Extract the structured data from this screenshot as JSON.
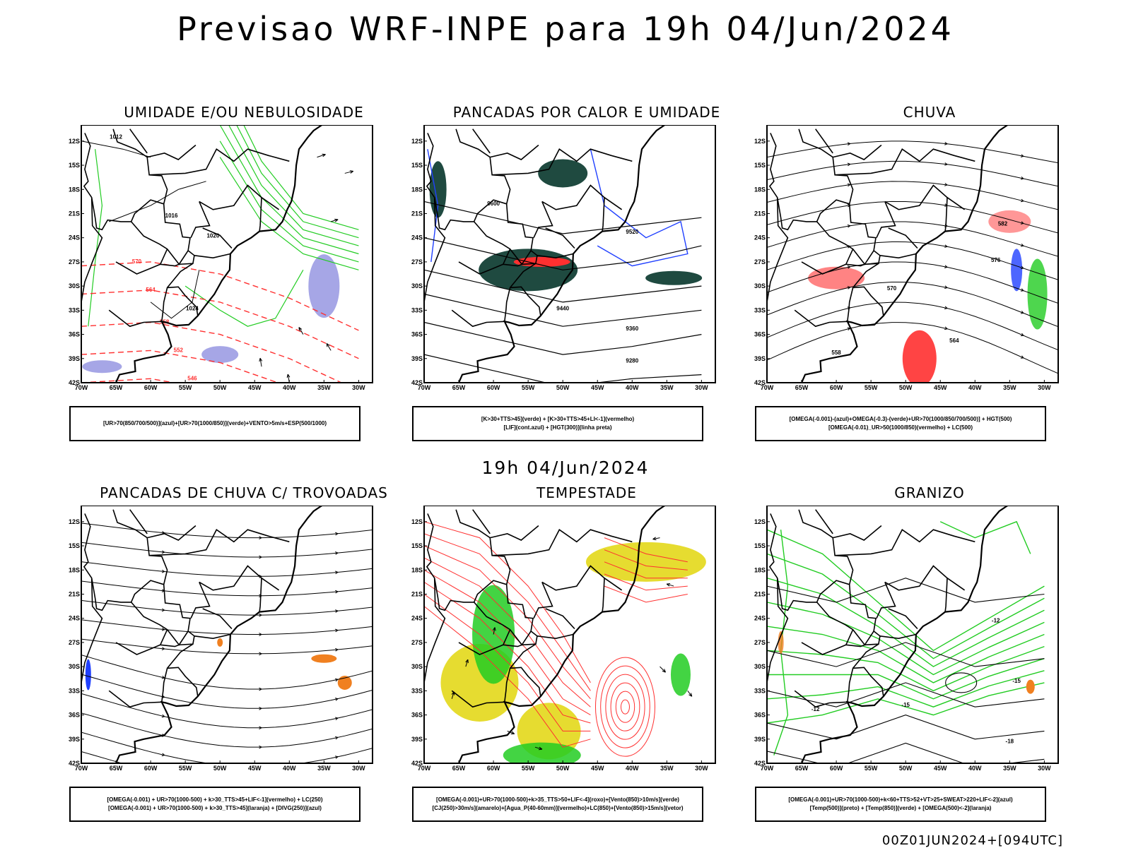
{
  "header": {
    "title": "Previsao WRF-INPE  para 19h 04/Jun/2024"
  },
  "subheader": {
    "title": "19h 04/Jun/2024"
  },
  "footer": {
    "run": "00Z01JUN2024+[094UTC]"
  },
  "axes": {
    "lat_labels": [
      "12S",
      "15S",
      "18S",
      "21S",
      "24S",
      "27S",
      "30S",
      "33S",
      "36S",
      "39S",
      "42S"
    ],
    "lon_labels": [
      "70W",
      "65W",
      "60W",
      "55W",
      "50W",
      "45W",
      "40W",
      "35W",
      "30W"
    ]
  },
  "panels": [
    {
      "title": "UMIDADE E/OU NEBULOSIDADE",
      "legend": [
        "[UR>70(850/700/500)](azul)+[UR>70(1000/850)](verde)+VENTO>5m/s+ESP(500/1000)"
      ],
      "contour_labels": [
        "1012",
        "1016",
        "1020",
        "1024",
        "570",
        "564",
        "558",
        "552",
        "546"
      ]
    },
    {
      "title": "PANCADAS POR CALOR E UMIDADE",
      "legend": [
        "[K>30+TTS>45](verde) + [K>30+TTS>45+LI<-1](vermelho)",
        "[LIF](cont.azul) + [HGT(300)](linha preta)"
      ],
      "contour_labels": [
        "9600",
        "9520",
        "9440",
        "9360",
        "9280"
      ]
    },
    {
      "title": "CHUVA",
      "legend": [
        "[OMEGA(-0.001)-(azul)+OMEGA(-0.3)-(verde)+UR>70(1000/850/700/500)] + HGT(500)",
        "[OMEGA(-0.01)_UR>50(1000/850)(vermelho) + LC(500)"
      ],
      "contour_labels": [
        "582",
        "576",
        "570",
        "564",
        "558"
      ]
    },
    {
      "title": "PANCADAS DE CHUVA C/ TROVOADAS",
      "legend": [
        "[OMEGA(-0.001) + UR>70(1000-500) + k>30_TTS>45+LIF<-1](vermelho) + LC(250)",
        "[OMEGA(-0.001) + UR>70(1000-500) + k>30_TTS>45](laranja) + [DIVG(250)](azul)"
      ],
      "contour_labels": []
    },
    {
      "title": "TEMPESTADE",
      "legend": [
        "[OMEGA(-0.001)+UR>70(1000-500)+k>35_TTS>50+LIF<-4](roxo)+[Vento(850)>10m/s](verde)",
        "[CJ(250)>30m/s](amarelo)+[Agua_P(40-60mm)](vermelho)+LC(850)+[Vento(850)>15m/s](vetor)"
      ],
      "contour_labels": []
    },
    {
      "title": "GRANIZO",
      "legend": [
        "[OMEGA(-0.001)+UR>70(1000-500)+k<60+TTS>52+VT>25+SWEAT>220+LIF<-2](azul)",
        "[Temp(500)](preto) + [Temp(850)](verde) + [OMEGA(500)<-2](laranja)"
      ],
      "contour_labels": [
        "-12",
        "-15",
        "-18"
      ]
    }
  ],
  "colors": {
    "contour": "#000000",
    "red": "#ff3030",
    "green": "#22cc22",
    "blue": "#2040ff",
    "purple": "#9090e0",
    "darkgreen": "#1f4a40",
    "yellow": "#e6dc30",
    "orange": "#f08020"
  }
}
